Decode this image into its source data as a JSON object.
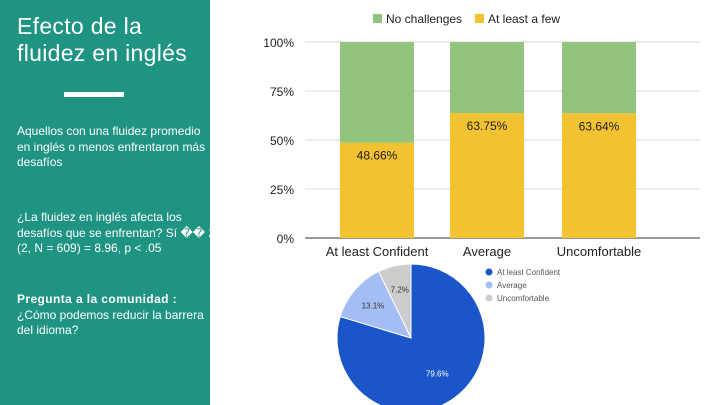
{
  "slide": {
    "title": "Efecto de la fluidez en inglés",
    "paragraph1": "Aquellos con una fluidez promedio en inglés o menos enfrentaron más desafíos",
    "paragraph2": "¿La fluidez en inglés afecta los desafíos que se enfrentan? Sí �� 2 (2, N = 609) = 8.96, p < .05",
    "question_heading": "Pregunta a la comunidad :",
    "question_text": "¿Cómo podemos reducir la barrera del idioma?"
  },
  "colors": {
    "panel": "#1f9483",
    "no_challenges": "#93c47d",
    "at_least_a_few": "#f1c232",
    "pie_confident": "#1a56c9",
    "pie_average": "#a4bdf5",
    "pie_uncomfortable": "#cccccc"
  },
  "chart_data": [
    {
      "type": "bar",
      "stacked": true,
      "normalized": true,
      "categories": [
        "At least Confident",
        "Average",
        "Uncomfortable"
      ],
      "series": [
        {
          "name": "No challenges",
          "values": [
            51.34,
            36.25,
            36.36
          ]
        },
        {
          "name": "At least a few",
          "values": [
            48.66,
            63.75,
            63.64
          ]
        }
      ],
      "data_labels": [
        "48.66%",
        "63.75%",
        "63.64%"
      ],
      "yticks": [
        "0%",
        "25%",
        "50%",
        "75%",
        "100%"
      ],
      "ylim": [
        0,
        100
      ],
      "grid": true,
      "legend": "top"
    },
    {
      "type": "pie",
      "labels": [
        "At least Confident",
        "Average",
        "Uncomfortable"
      ],
      "values": [
        79.6,
        13.1,
        7.2
      ],
      "data_labels": [
        "79.6%",
        "13.1%",
        "7.2%"
      ],
      "legend": "right"
    }
  ]
}
